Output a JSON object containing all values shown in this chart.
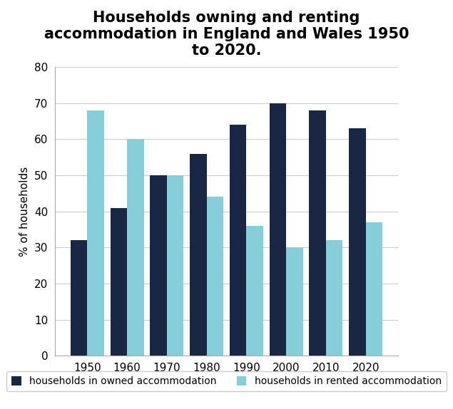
{
  "title": "Households owning and renting\naccommodation in England and Wales 1950\nto 2020.",
  "years": [
    "1950",
    "1960",
    "1970",
    "1980",
    "1990",
    "2000",
    "2010",
    "2020"
  ],
  "owned": [
    32,
    41,
    50,
    56,
    64,
    70,
    68,
    63
  ],
  "rented": [
    68,
    60,
    50,
    44,
    36,
    30,
    32,
    37
  ],
  "owned_color": "#1a2744",
  "rented_color": "#87cedb",
  "ylabel": "% of households",
  "ylim": [
    0,
    80
  ],
  "yticks": [
    0,
    10,
    20,
    30,
    40,
    50,
    60,
    70,
    80
  ],
  "legend_owned": "households in owned accommodation",
  "legend_rented": "households in rented accommodation",
  "bar_width": 0.42,
  "background_color": "#ffffff",
  "title_fontsize": 15,
  "axis_fontsize": 11,
  "legend_fontsize": 10,
  "grid_color": "#cccccc"
}
